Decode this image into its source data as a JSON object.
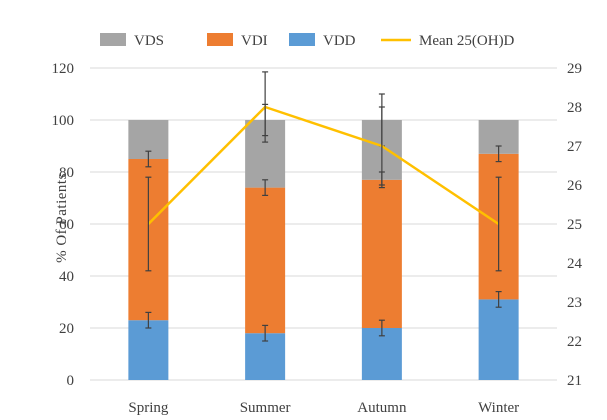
{
  "chart_data": {
    "type": "bar",
    "stacked": true,
    "categories": [
      "Spring",
      "Summer",
      "Autumn",
      "Winter"
    ],
    "series": [
      {
        "name": "VDD",
        "color": "#5b9bd5",
        "values": [
          23,
          18,
          20,
          31
        ],
        "error": [
          3,
          3,
          3,
          3
        ]
      },
      {
        "name": "VDI",
        "color": "#ed7d31",
        "values": [
          62,
          56,
          57,
          56
        ],
        "error": [
          3,
          3,
          3,
          3
        ]
      },
      {
        "name": "VDS",
        "color": "#a5a5a5",
        "values": [
          15,
          26,
          23,
          13
        ],
        "error": [
          0,
          6,
          10,
          0
        ]
      }
    ],
    "line": {
      "name": "Mean 25(OH)D",
      "color": "#ffc000",
      "values": [
        25.0,
        28.0,
        27.0,
        25.0
      ],
      "error": [
        1.2,
        0.9,
        1.0,
        1.2
      ]
    },
    "ylabel": "% Of Patients",
    "y_ticks": [
      0,
      20,
      40,
      60,
      80,
      100,
      120
    ],
    "ylim": [
      0,
      120
    ],
    "y2_ticks": [
      21,
      22,
      23,
      24,
      25,
      26,
      27,
      28,
      29
    ],
    "y2lim": [
      21,
      29
    ],
    "legend_order": [
      "VDS",
      "VDI",
      "VDD",
      "Mean 25(OH)D"
    ],
    "legend_position": "top"
  }
}
